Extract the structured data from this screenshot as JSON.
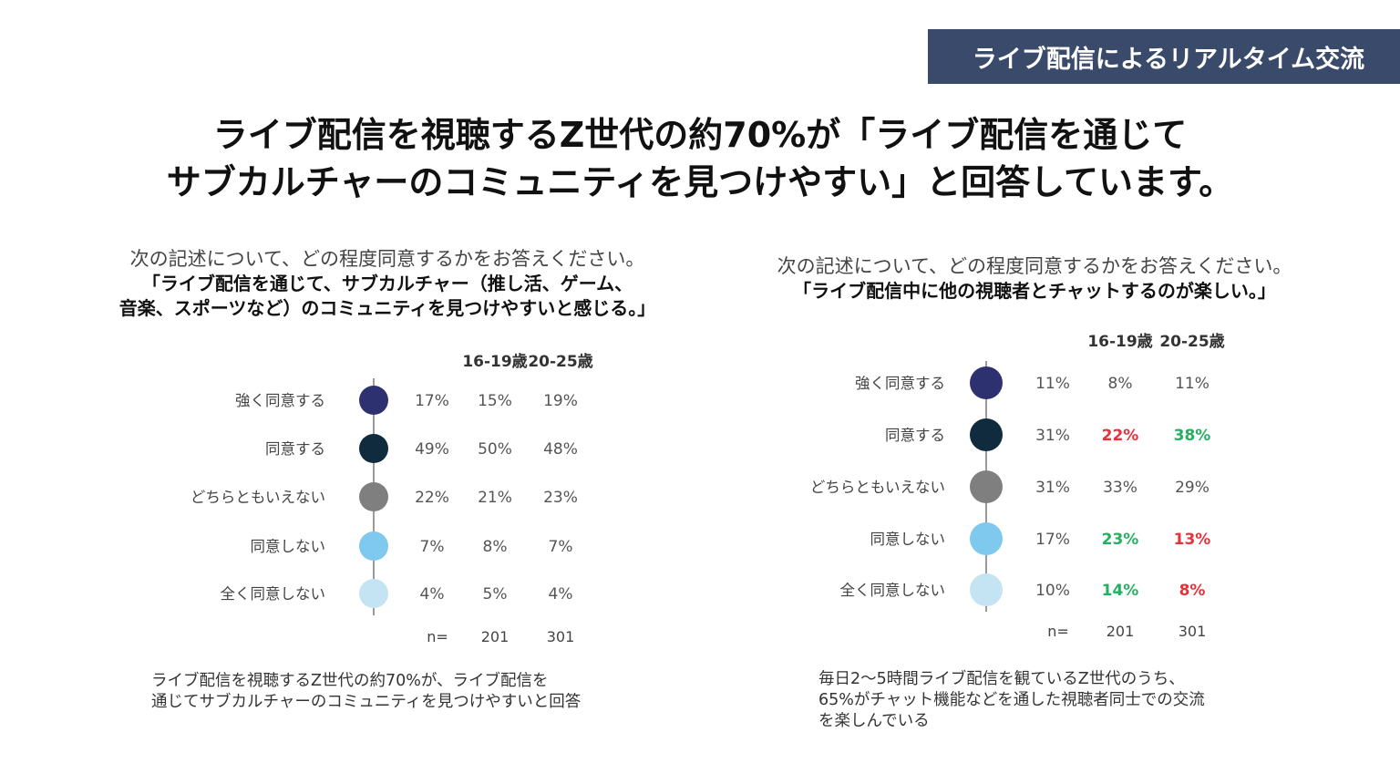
{
  "tag": "ライブ配信によるリアルタイム交流",
  "headline": {
    "line1": "ライブ配信を視聴するZ世代の約70%が「ライブ配信を通じて",
    "line2": "サブカルチャーのコミュニティを見つけやすい」と回答しています。"
  },
  "left": {
    "question": "次の記述について、どの程度同意するかをお答えください。",
    "statement_lines": [
      "「ライブ配信を通じて、サブカルチャー（推し活、ゲーム、",
      "音楽、スポーツなど）のコミュニティを見つけやすいと感じる。」"
    ],
    "note_lines": [
      "ライブ配信を視聴するZ世代の約70%が、ライブ配信を",
      "通じてサブカルチャーのコミュニティを見つけやすいと回答"
    ]
  },
  "right": {
    "question": "次の記述について、どの程度同意するかをお答えください。",
    "statement_lines": [
      "「ライブ配信中に他の視聴者とチャットするのが楽しい。」"
    ],
    "note_lines": [
      "毎日2～5時間ライブ配信を観ているZ世代のうち、",
      "65%がチャット機能などを通した視聴者同士での交流",
      "を楽しんでいる"
    ]
  },
  "colors": {
    "tag_bg": "#3a4a6b",
    "dots": [
      "#2e3170",
      "#0f2b3d",
      "#7f7f7f",
      "#7fc8ee",
      "#c5e4f3"
    ],
    "red": "#e8313a",
    "green": "#27ae60"
  },
  "chart_data": [
    {
      "type": "table",
      "col_headers": [
        "",
        "16-19歳",
        "20-25歳"
      ],
      "categories": [
        "強く同意する",
        "同意する",
        "どちらともいえない",
        "同意しない",
        "全く同意しない"
      ],
      "series": [
        {
          "values": [
            17,
            49,
            22,
            7,
            4
          ]
        },
        {
          "name": "16-19歳",
          "values": [
            15,
            50,
            21,
            8,
            5
          ]
        },
        {
          "name": "20-25歳",
          "values": [
            19,
            48,
            23,
            7,
            4
          ]
        }
      ],
      "value_labels": [
        [
          "17%",
          "15%",
          "19%"
        ],
        [
          "49%",
          "50%",
          "48%"
        ],
        [
          "22%",
          "21%",
          "23%"
        ],
        [
          "7%",
          "8%",
          "7%"
        ],
        [
          "4%",
          "5%",
          "4%"
        ]
      ],
      "value_colors": [
        [
          "",
          "",
          ""
        ],
        [
          "",
          "",
          ""
        ],
        [
          "",
          "",
          ""
        ],
        [
          "",
          "",
          ""
        ],
        [
          "",
          "",
          ""
        ]
      ],
      "n_label": "n=",
      "n_values": [
        "",
        "201",
        "301"
      ]
    },
    {
      "type": "table",
      "col_headers": [
        "",
        "16-19歳",
        "20-25歳"
      ],
      "categories": [
        "強く同意する",
        "同意する",
        "どちらともいえない",
        "同意しない",
        "全く同意しない"
      ],
      "series": [
        {
          "values": [
            11,
            31,
            31,
            17,
            10
          ]
        },
        {
          "name": "16-19歳",
          "values": [
            8,
            22,
            33,
            23,
            14
          ]
        },
        {
          "name": "20-25歳",
          "values": [
            11,
            38,
            29,
            13,
            8
          ]
        }
      ],
      "value_labels": [
        [
          "11%",
          "8%",
          "11%"
        ],
        [
          "31%",
          "22%",
          "38%"
        ],
        [
          "31%",
          "33%",
          "29%"
        ],
        [
          "17%",
          "23%",
          "13%"
        ],
        [
          "10%",
          "14%",
          "8%"
        ]
      ],
      "value_colors": [
        [
          "",
          "",
          ""
        ],
        [
          "",
          "red",
          "green"
        ],
        [
          "",
          "",
          ""
        ],
        [
          "",
          "green",
          "red"
        ],
        [
          "",
          "green",
          "red"
        ]
      ],
      "n_label": "n=",
      "n_values": [
        "",
        "201",
        "301"
      ]
    }
  ]
}
